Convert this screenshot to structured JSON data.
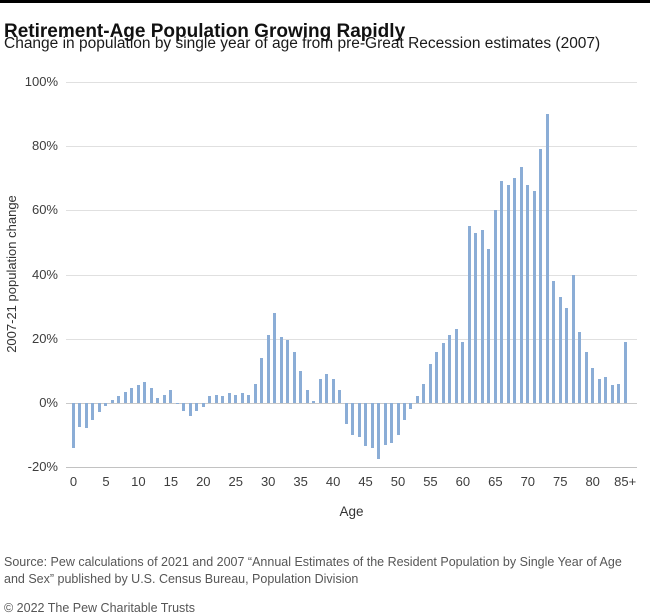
{
  "header": {
    "title": "Retirement-Age Population Growing Rapidly",
    "subtitle": "Change in population by single year of age from pre-Great Recession estimates (2007)"
  },
  "chart_data": {
    "type": "bar",
    "title": "Retirement-Age Population Growing Rapidly",
    "xlabel": "Age",
    "ylabel": "2007-21 population change",
    "ylim": [
      -20,
      100
    ],
    "grid": "horizontal",
    "bar_color": "#8badd6",
    "categories": [
      "0",
      "1",
      "2",
      "3",
      "4",
      "5",
      "6",
      "7",
      "8",
      "9",
      "10",
      "11",
      "12",
      "13",
      "14",
      "15",
      "16",
      "17",
      "18",
      "19",
      "20",
      "21",
      "22",
      "23",
      "24",
      "25",
      "26",
      "27",
      "28",
      "29",
      "30",
      "31",
      "32",
      "33",
      "34",
      "35",
      "36",
      "37",
      "38",
      "39",
      "40",
      "41",
      "42",
      "43",
      "44",
      "45",
      "46",
      "47",
      "48",
      "49",
      "50",
      "51",
      "52",
      "53",
      "54",
      "55",
      "56",
      "57",
      "58",
      "59",
      "60",
      "61",
      "62",
      "63",
      "64",
      "65",
      "66",
      "67",
      "68",
      "69",
      "70",
      "71",
      "72",
      "73",
      "74",
      "75",
      "76",
      "77",
      "78",
      "79",
      "80",
      "81",
      "82",
      "83",
      "84",
      "85+"
    ],
    "values": [
      -14,
      -7.5,
      -8,
      -5.5,
      -3,
      -1,
      1,
      2,
      3.5,
      4.5,
      5.5,
      6.5,
      4.5,
      1.5,
      2.5,
      4,
      -0.5,
      -2.5,
      -4,
      -2.5,
      -1.2,
      2.2,
      2.5,
      2,
      3,
      2.5,
      3,
      2.5,
      5.8,
      14,
      21,
      28,
      20.5,
      19.5,
      16,
      10,
      4,
      0.5,
      7.5,
      9,
      7.5,
      4,
      -6.5,
      -10,
      -10.5,
      -13.5,
      -14,
      -17.5,
      -13,
      -12.5,
      -10,
      -5.5,
      -2,
      2,
      6,
      12,
      16,
      18.5,
      21,
      23,
      19,
      55,
      53,
      54,
      48,
      60,
      69,
      68,
      70,
      73.5,
      68,
      66,
      79,
      90,
      38,
      33,
      29.5,
      40,
      22,
      16,
      11,
      7.5,
      8,
      5.5,
      6,
      19
    ],
    "yticks": [
      100,
      80,
      60,
      40,
      20,
      0,
      -20
    ],
    "ytick_labels": [
      "100%",
      "80%",
      "60%",
      "40%",
      "20%",
      "0%",
      "-20%"
    ],
    "xticks": [
      {
        "age": 0,
        "label": "0"
      },
      {
        "age": 5,
        "label": "5"
      },
      {
        "age": 10,
        "label": "10"
      },
      {
        "age": 15,
        "label": "15"
      },
      {
        "age": 20,
        "label": "20"
      },
      {
        "age": 25,
        "label": "25"
      },
      {
        "age": 30,
        "label": "30"
      },
      {
        "age": 35,
        "label": "35"
      },
      {
        "age": 40,
        "label": "40"
      },
      {
        "age": 45,
        "label": "45"
      },
      {
        "age": 50,
        "label": "50"
      },
      {
        "age": 55,
        "label": "55"
      },
      {
        "age": 60,
        "label": "60"
      },
      {
        "age": 65,
        "label": "65"
      },
      {
        "age": 70,
        "label": "70"
      },
      {
        "age": 75,
        "label": "75"
      },
      {
        "age": 80,
        "label": "80"
      },
      {
        "age": 85,
        "label": "85+"
      }
    ]
  },
  "footer": {
    "source": "Source: Pew calculations of 2021 and 2007 “Annual Estimates of the Resident Population by Single Year of Age and Sex” published by U.S. Census Bureau, Population Division",
    "copyright": "© 2022 The Pew Charitable Trusts"
  }
}
